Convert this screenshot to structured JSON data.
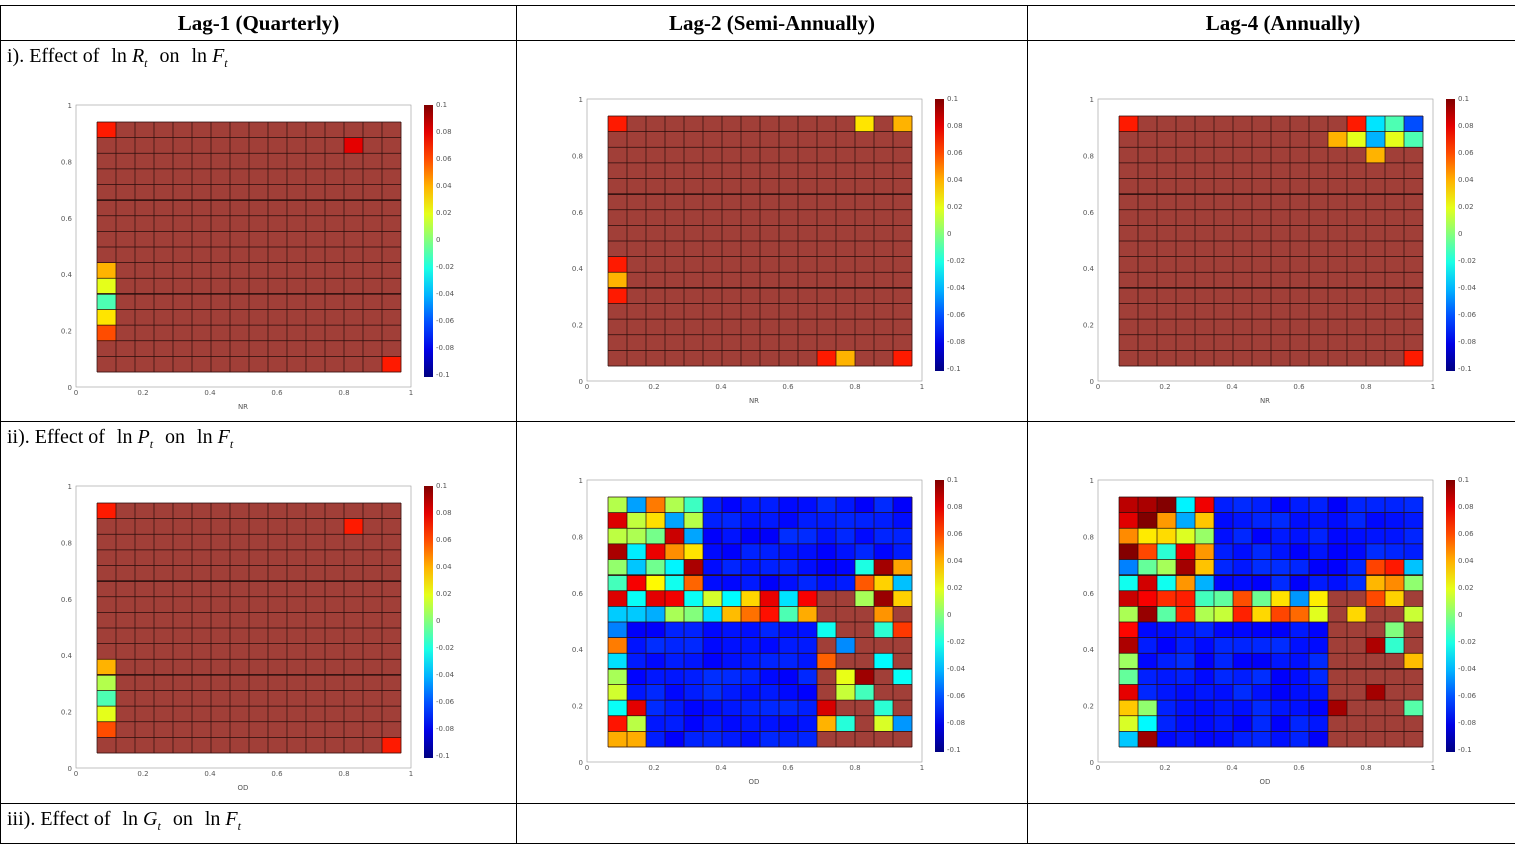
{
  "table": {
    "header": [
      "Lag-1 (Quarterly)",
      "Lag-2 (Semi-Annually)",
      "Lag-4 (Annually)"
    ],
    "rows": [
      {
        "label": [
          "i). Effect of",
          "ln",
          "R",
          "t",
          "on",
          "ln",
          "F",
          "t"
        ],
        "x_label": "NR"
      },
      {
        "label": [
          "ii). Effect of",
          "ln",
          "P",
          "t",
          "on",
          "ln",
          "F",
          "t"
        ],
        "x_label": "OD"
      },
      {
        "label": [
          "iii). Effect of",
          "ln",
          "G",
          "t",
          "on",
          "ln",
          "F",
          "t"
        ]
      }
    ]
  },
  "heatmap_axis": {
    "ticks": [
      "0",
      "0.2",
      "0.4",
      "0.6",
      "0.8",
      "1"
    ],
    "colorbar_ticks": [
      "0.1",
      "0.08",
      "0.06",
      "0.04",
      "0.02",
      "0",
      "-0.02",
      "-0.04",
      "-0.06",
      "-0.08",
      "-0.1"
    ]
  }
}
